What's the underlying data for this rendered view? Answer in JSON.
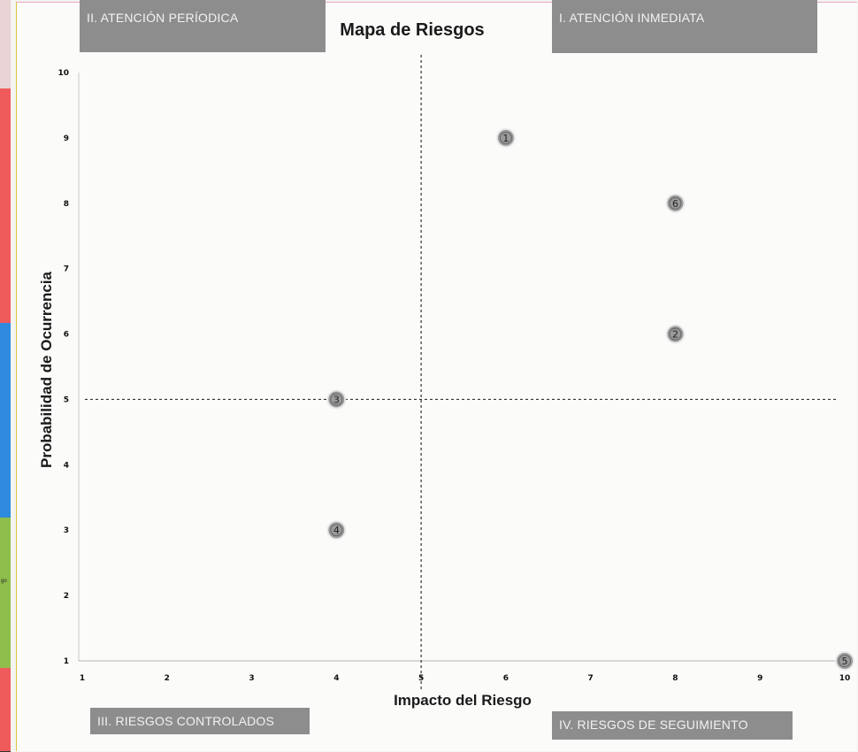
{
  "quadrants": {
    "top_left": "II. ATENCIÓN PERÍODICA",
    "top_right": "I. ATENCIÓN INMEDIATA",
    "bottom_left": "III. RIESGOS CONTROLADOS",
    "bottom_right": "IV. RIESGOS DE SEGUIMIENTO"
  },
  "left_strip": {
    "colors": [
      "#e9d3d6",
      "#ef5b5b",
      "#ef5b5b",
      "#2f8be0",
      "#2f8be0",
      "#8fbe4d",
      "#ef5b5b"
    ],
    "fragment": "go"
  },
  "chart_data": {
    "type": "scatter",
    "title": "Mapa de Riesgos",
    "xlabel": "Impacto del Riesgo",
    "ylabel": "Probabilidad de Ocurrencia",
    "xlim": [
      1,
      10
    ],
    "ylim": [
      1,
      10
    ],
    "xticks": [
      "1",
      "2",
      "3",
      "4",
      "5",
      "6",
      "7",
      "8",
      "9",
      "10"
    ],
    "yticks": [
      "1",
      "2",
      "3",
      "4",
      "5",
      "6",
      "7",
      "8",
      "9",
      "10"
    ],
    "threshold_x": 5,
    "threshold_y": 5,
    "points": [
      {
        "label": "1",
        "x": 6,
        "y": 9
      },
      {
        "label": "2",
        "x": 8,
        "y": 6
      },
      {
        "label": "3",
        "x": 4,
        "y": 5
      },
      {
        "label": "4",
        "x": 4,
        "y": 3
      },
      {
        "label": "5",
        "x": 10,
        "y": 1
      },
      {
        "label": "6",
        "x": 8,
        "y": 8
      }
    ],
    "marker_color": "#9a9a9a",
    "grid": false,
    "legend": "none"
  }
}
